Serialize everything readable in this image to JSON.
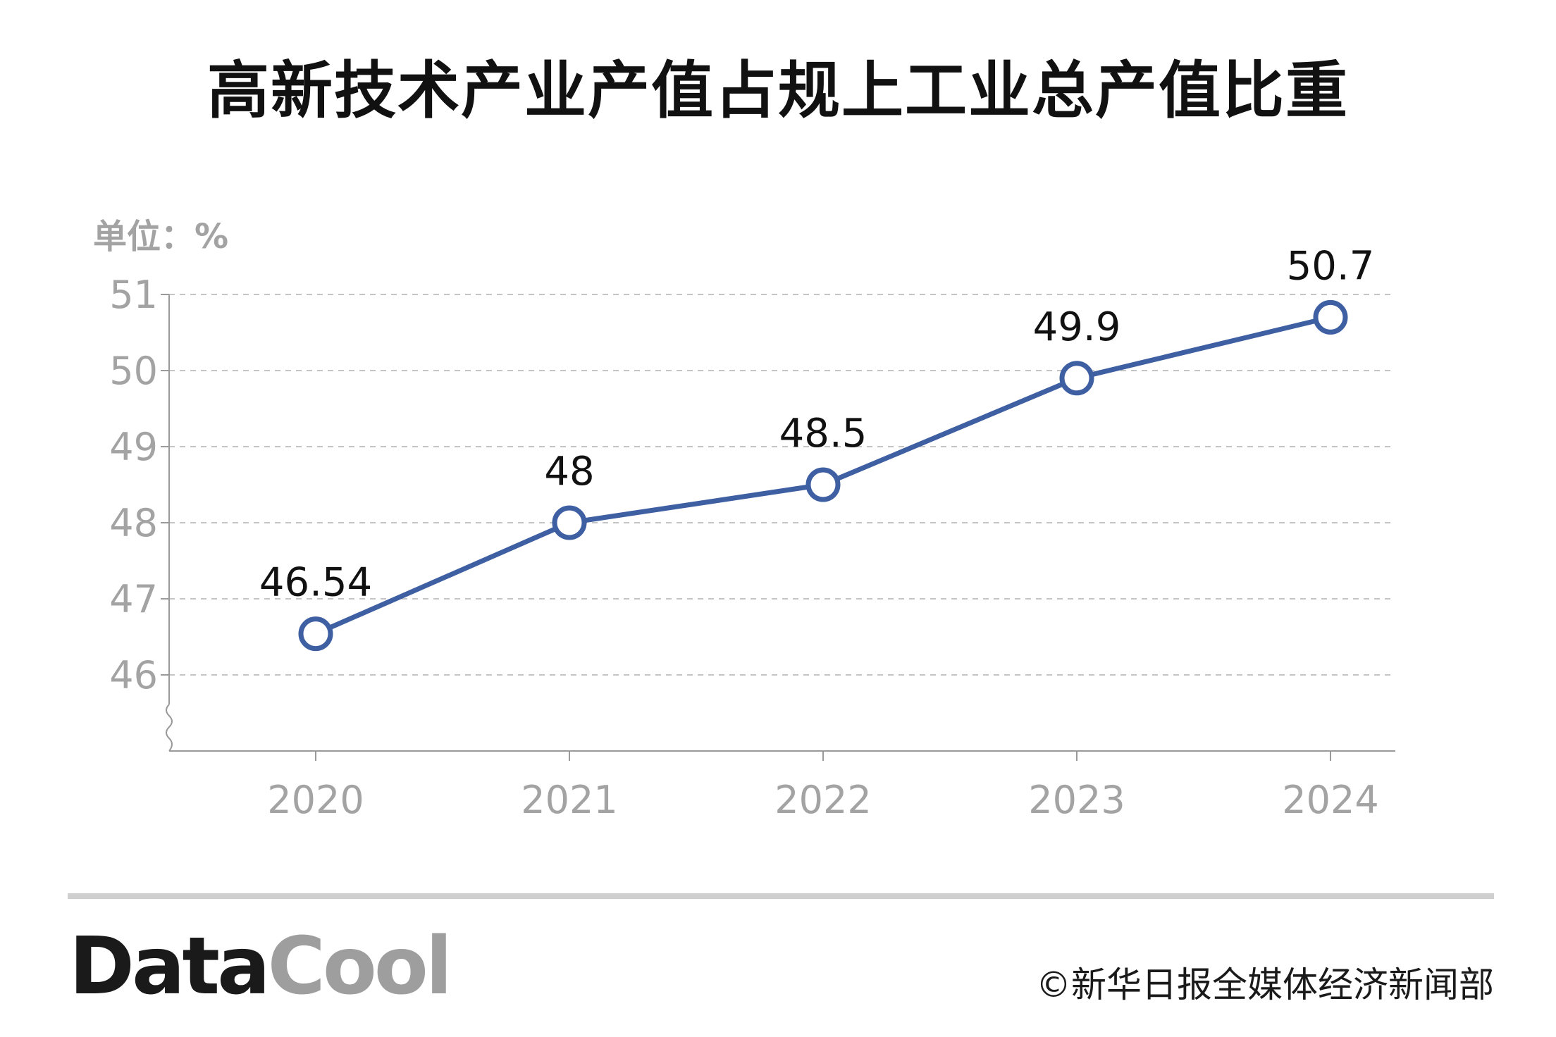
{
  "title": "高新技术产业产值占规上工业总产值比重",
  "unit_label": "单位：%",
  "footer": {
    "logo_part1": "Data",
    "logo_part2": "Cool",
    "copyright": "©新华日报全媒体经济新闻部"
  },
  "colors": {
    "line": "#3f5fa3",
    "grid": "#c4c4c4",
    "axis_text": "#a3a3a3",
    "label_text": "#111111"
  },
  "chart_data": {
    "type": "line",
    "title": "高新技术产业产值占规上工业总产值比重",
    "xlabel": "",
    "ylabel": "单位：%",
    "categories": [
      "2020",
      "2021",
      "2022",
      "2023",
      "2024"
    ],
    "series": [
      {
        "values": [
          46.54,
          48,
          48.5,
          49.9,
          50.7
        ],
        "labels": [
          "46.54",
          "48",
          "48.5",
          "49.9",
          "50.7"
        ]
      }
    ],
    "yticks": [
      "46",
      "47",
      "48",
      "49",
      "50",
      "51"
    ],
    "ylim": [
      45,
      51
    ],
    "grid": true,
    "axis_break": true
  }
}
